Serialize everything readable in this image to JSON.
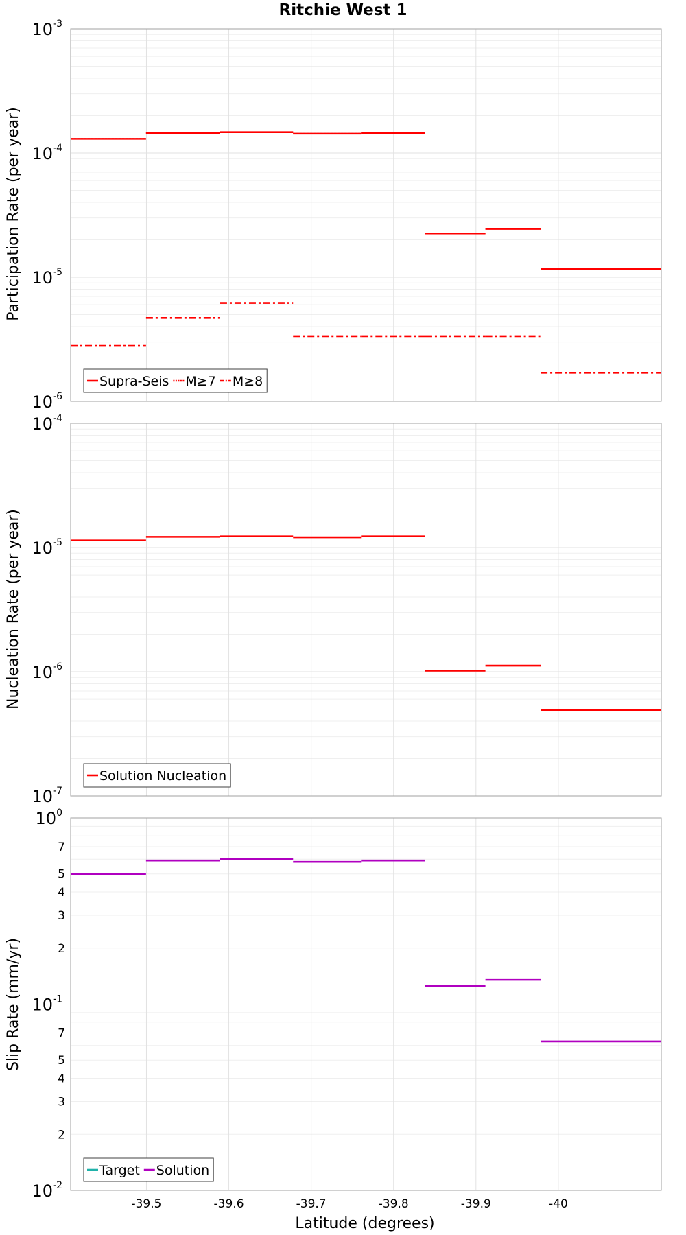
{
  "chart_data": {
    "title": "Ritchie West 1",
    "xlabel": "Latitude (degrees)",
    "x_axis": {
      "range": [
        -39.408,
        -40.125
      ],
      "inverted": true,
      "ticks": [
        -39.5,
        -39.6,
        -39.7,
        -39.8,
        -39.9,
        -40
      ],
      "tick_labels": [
        "-39.5",
        "-39.6",
        "-39.7",
        "-39.8",
        "-39.9",
        "-40"
      ],
      "grid": true
    },
    "segment_edges": [
      -39.408,
      -39.4995,
      -39.5895,
      -39.678,
      -39.7605,
      -39.8385,
      -39.9115,
      -39.9785,
      -40.125
    ],
    "panels": [
      {
        "type": "line",
        "step": true,
        "log_y": true,
        "ylabel": "Participation Rate (per year)",
        "ylim": [
          1e-06,
          0.001
        ],
        "yticks": [
          {
            "base": "10",
            "exp": "-3",
            "value": 0.001
          },
          {
            "base": "10",
            "exp": "-4",
            "value": 0.0001
          },
          {
            "base": "10",
            "exp": "-5",
            "value": 1e-05
          },
          {
            "base": "10",
            "exp": "-6",
            "value": 1e-06
          }
        ],
        "legend_position": "bottom-left",
        "series": [
          {
            "name": "Supra-Seis",
            "style": "solid",
            "color": "#ff0000",
            "values": [
              0.00013,
              0.000145,
              0.000147,
              0.000143,
              0.000145,
              2.25e-05,
              2.45e-05,
              1.16e-05
            ]
          },
          {
            "name": "M≥7",
            "style": "dotted",
            "color": "#ff0000",
            "values": [
              0.00013,
              0.000145,
              0.000147,
              0.000143,
              0.000145,
              2.25e-05,
              2.45e-05,
              1.16e-05
            ]
          },
          {
            "name": "M≥8",
            "style": "dashdot",
            "color": "#ff0000",
            "values": [
              2.8e-06,
              4.7e-06,
              6.2e-06,
              3.35e-06,
              3.35e-06,
              3.35e-06,
              3.35e-06,
              1.7e-06
            ]
          }
        ]
      },
      {
        "type": "line",
        "step": true,
        "log_y": true,
        "ylabel": "Nucleation Rate (per year)",
        "ylim": [
          1e-07,
          0.0001
        ],
        "yticks": [
          {
            "base": "10",
            "exp": "-4",
            "value": 0.0001
          },
          {
            "base": "10",
            "exp": "-5",
            "value": 1e-05
          },
          {
            "base": "10",
            "exp": "-6",
            "value": 1e-06
          },
          {
            "base": "10",
            "exp": "-7",
            "value": 1e-07
          }
        ],
        "legend_position": "bottom-left",
        "series": [
          {
            "name": "Solution Nucleation",
            "style": "solid",
            "color": "#ff0000",
            "values": [
              1.14e-05,
              1.22e-05,
              1.23e-05,
              1.21e-05,
              1.23e-05,
              1.02e-06,
              1.12e-06,
              4.9e-07
            ]
          }
        ]
      },
      {
        "type": "line",
        "step": true,
        "log_y": true,
        "ylabel": "Slip Rate (mm/yr)",
        "ylim": [
          0.01,
          1
        ],
        "yticks": [
          {
            "base": "10",
            "exp": "0",
            "value": 1
          },
          {
            "base": "10",
            "exp": "-1",
            "value": 0.1
          },
          {
            "base": "10",
            "exp": "-2",
            "value": 0.01
          }
        ],
        "minor_tick_labels": [
          {
            "label": "7",
            "value": 0.7
          },
          {
            "label": "5",
            "value": 0.5
          },
          {
            "label": "4",
            "value": 0.4
          },
          {
            "label": "3",
            "value": 0.3
          },
          {
            "label": "2",
            "value": 0.2
          },
          {
            "label": "7",
            "value": 0.07
          },
          {
            "label": "5",
            "value": 0.05
          },
          {
            "label": "4",
            "value": 0.04
          },
          {
            "label": "3",
            "value": 0.03
          },
          {
            "label": "2",
            "value": 0.02
          }
        ],
        "legend_position": "bottom-left",
        "series": [
          {
            "name": "Target",
            "style": "solid",
            "color": "#20b2aa",
            "values": []
          },
          {
            "name": "Solution",
            "style": "solid",
            "color": "#b000c0",
            "values": [
              0.5,
              0.59,
              0.6,
              0.58,
              0.59,
              0.125,
              0.135,
              0.063
            ]
          }
        ]
      }
    ]
  }
}
